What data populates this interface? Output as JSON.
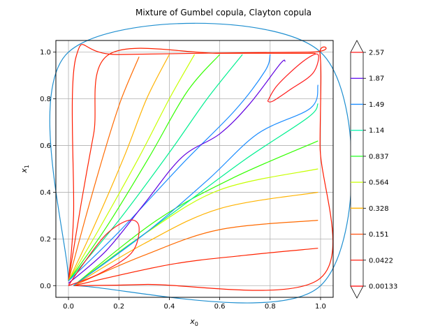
{
  "chart_data": {
    "type": "contour",
    "title": "Mixture of Gumbel copula, Clayton copula",
    "xlabel": "x",
    "xlabel_sub": "0",
    "ylabel": "x",
    "ylabel_sub": "1",
    "xlim": [
      -0.05,
      1.05
    ],
    "ylim": [
      -0.05,
      1.05
    ],
    "xticks": [
      "0.0",
      "0.2",
      "0.4",
      "0.6",
      "0.8",
      "1.0"
    ],
    "xtick_values": [
      0.0,
      0.2,
      0.4,
      0.6,
      0.8,
      1.0
    ],
    "yticks": [
      "0.0",
      "0.2",
      "0.4",
      "0.6",
      "0.8",
      "1.0"
    ],
    "ytick_values": [
      0.0,
      0.2,
      0.4,
      0.6,
      0.8,
      1.0
    ],
    "grid": true,
    "colorbar": {
      "extend": "both",
      "labels": [
        "0.00133",
        "0.0422",
        "0.151",
        "0.328",
        "0.564",
        "0.837",
        "1.14",
        "1.49",
        "1.87",
        "2.57"
      ],
      "colors": [
        "#ff0000",
        "#ff1f10",
        "#ff5a1d",
        "#ffb000",
        "#c8ff00",
        "#1eff1e",
        "#19f5b4",
        "#1a8cff",
        "#5a00f0",
        "#ff1a1a"
      ],
      "band_colors": [
        "#ff1f10",
        "#ff5a1d",
        "#ffb000",
        "#c8ff00",
        "#1eff1e",
        "#19f5b4",
        "#1a8cff",
        "#5a00f0",
        "#a000ff",
        "#ff1a1a"
      ]
    },
    "contours": [
      {
        "level": "0.00133",
        "color": "#1f8fd0",
        "points": [
          [
            0.0,
            0.02
          ],
          [
            0.0,
            1.0
          ],
          [
            1.0,
            1.0
          ],
          [
            1.0,
            0.0
          ],
          [
            0.02,
            0.0
          ]
        ]
      },
      {
        "level": "0.0422",
        "color": "#ff1a00",
        "points": [
          [
            0.0,
            0.02
          ],
          [
            0.02,
            0.3
          ],
          [
            0.03,
            0.98
          ],
          [
            0.2,
            0.99
          ],
          [
            0.95,
            1.0
          ],
          [
            0.998,
            0.99
          ],
          [
            0.998,
            0.6
          ],
          [
            0.997,
            0.03
          ],
          [
            0.3,
            0.005
          ],
          [
            0.02,
            0.0
          ]
        ]
      },
      {
        "level": "0.151",
        "color": "#ff2200",
        "points": [
          [
            0.0,
            0.02
          ],
          [
            0.05,
            0.35
          ],
          [
            0.1,
            0.65
          ],
          [
            0.16,
            0.99
          ],
          [
            0.6,
            0.995
          ],
          [
            0.98,
            0.995
          ]
        ]
      },
      {
        "level": "0.151",
        "color": "#ff2200",
        "points": [
          [
            0.02,
            0.0
          ],
          [
            0.4,
            0.09
          ],
          [
            0.7,
            0.13
          ],
          [
            0.99,
            0.16
          ]
        ]
      },
      {
        "level": "0.328",
        "color": "#ff6a00",
        "points": [
          [
            0.0,
            0.02
          ],
          [
            0.07,
            0.3
          ],
          [
            0.15,
            0.6
          ],
          [
            0.21,
            0.8
          ],
          [
            0.28,
            0.98
          ]
        ]
      },
      {
        "level": "0.328",
        "color": "#ff6a00",
        "points": [
          [
            0.02,
            0.0
          ],
          [
            0.3,
            0.13
          ],
          [
            0.6,
            0.24
          ],
          [
            0.99,
            0.28
          ]
        ]
      },
      {
        "level": "0.564",
        "color": "#ffb300",
        "points": [
          [
            0.0,
            0.02
          ],
          [
            0.1,
            0.25
          ],
          [
            0.22,
            0.55
          ],
          [
            0.31,
            0.8
          ],
          [
            0.4,
            0.99
          ]
        ]
      },
      {
        "level": "0.564",
        "color": "#ffb300",
        "points": [
          [
            0.02,
            0.0
          ],
          [
            0.3,
            0.18
          ],
          [
            0.6,
            0.33
          ],
          [
            0.99,
            0.4
          ]
        ]
      },
      {
        "level": "0.837",
        "color": "#c6ff00",
        "points": [
          [
            0.0,
            0.02
          ],
          [
            0.12,
            0.24
          ],
          [
            0.28,
            0.55
          ],
          [
            0.4,
            0.8
          ],
          [
            0.5,
            0.99
          ]
        ]
      },
      {
        "level": "0.837",
        "color": "#c6ff00",
        "points": [
          [
            0.02,
            0.0
          ],
          [
            0.3,
            0.22
          ],
          [
            0.6,
            0.41
          ],
          [
            0.99,
            0.5
          ]
        ]
      },
      {
        "level": "1.14",
        "color": "#33ff00",
        "points": [
          [
            0.0,
            0.02
          ],
          [
            0.15,
            0.25
          ],
          [
            0.32,
            0.55
          ],
          [
            0.47,
            0.83
          ],
          [
            0.6,
            0.99
          ]
        ]
      },
      {
        "level": "1.14",
        "color": "#33ff00",
        "points": [
          [
            0.02,
            0.0
          ],
          [
            0.35,
            0.28
          ],
          [
            0.65,
            0.46
          ],
          [
            0.99,
            0.62
          ]
        ]
      },
      {
        "level": "1.49",
        "color": "#00f090",
        "points": [
          [
            0.0,
            0.02
          ],
          [
            0.2,
            0.28
          ],
          [
            0.4,
            0.57
          ],
          [
            0.55,
            0.8
          ],
          [
            0.69,
            0.99
          ]
        ]
      },
      {
        "level": "1.49",
        "color": "#00f090",
        "points": [
          [
            0.02,
            0.0
          ],
          [
            0.4,
            0.3
          ],
          [
            0.7,
            0.54
          ],
          [
            0.95,
            0.72
          ],
          [
            0.99,
            0.78
          ]
        ]
      },
      {
        "level": "1.87",
        "color": "#1a8cff",
        "points": [
          [
            0.0,
            0.02
          ],
          [
            0.2,
            0.23
          ],
          [
            0.45,
            0.52
          ],
          [
            0.66,
            0.75
          ],
          [
            0.78,
            0.92
          ],
          [
            0.8,
            0.99
          ]
        ]
      },
      {
        "level": "1.87",
        "color": "#1a8cff",
        "points": [
          [
            0.02,
            0.0
          ],
          [
            0.3,
            0.22
          ],
          [
            0.55,
            0.45
          ],
          [
            0.75,
            0.65
          ],
          [
            0.96,
            0.76
          ],
          [
            0.99,
            0.86
          ]
        ]
      },
      {
        "level": "2.57",
        "color": "#6000e0",
        "points": [
          [
            0.0,
            0.01
          ],
          [
            0.15,
            0.15
          ],
          [
            0.3,
            0.35
          ],
          [
            0.45,
            0.55
          ],
          [
            0.6,
            0.65
          ],
          [
            0.72,
            0.78
          ],
          [
            0.84,
            0.95
          ],
          [
            0.86,
            0.96
          ]
        ]
      },
      {
        "level": "2.57",
        "color": "#ff1a1a",
        "points": [
          [
            0.0,
            0.0
          ],
          [
            0.05,
            0.08
          ],
          [
            0.15,
            0.22
          ],
          [
            0.24,
            0.28
          ],
          [
            0.28,
            0.25
          ],
          [
            0.25,
            0.14
          ],
          [
            0.12,
            0.05
          ],
          [
            0.0,
            0.0
          ]
        ]
      },
      {
        "level": "2.57",
        "color": "#ff1a1a",
        "points": [
          [
            0.79,
            0.79
          ],
          [
            0.83,
            0.86
          ],
          [
            0.93,
            0.96
          ],
          [
            0.99,
            0.99
          ],
          [
            0.97,
            0.91
          ],
          [
            0.88,
            0.84
          ],
          [
            0.81,
            0.79
          ],
          [
            0.79,
            0.79
          ]
        ]
      }
    ]
  }
}
